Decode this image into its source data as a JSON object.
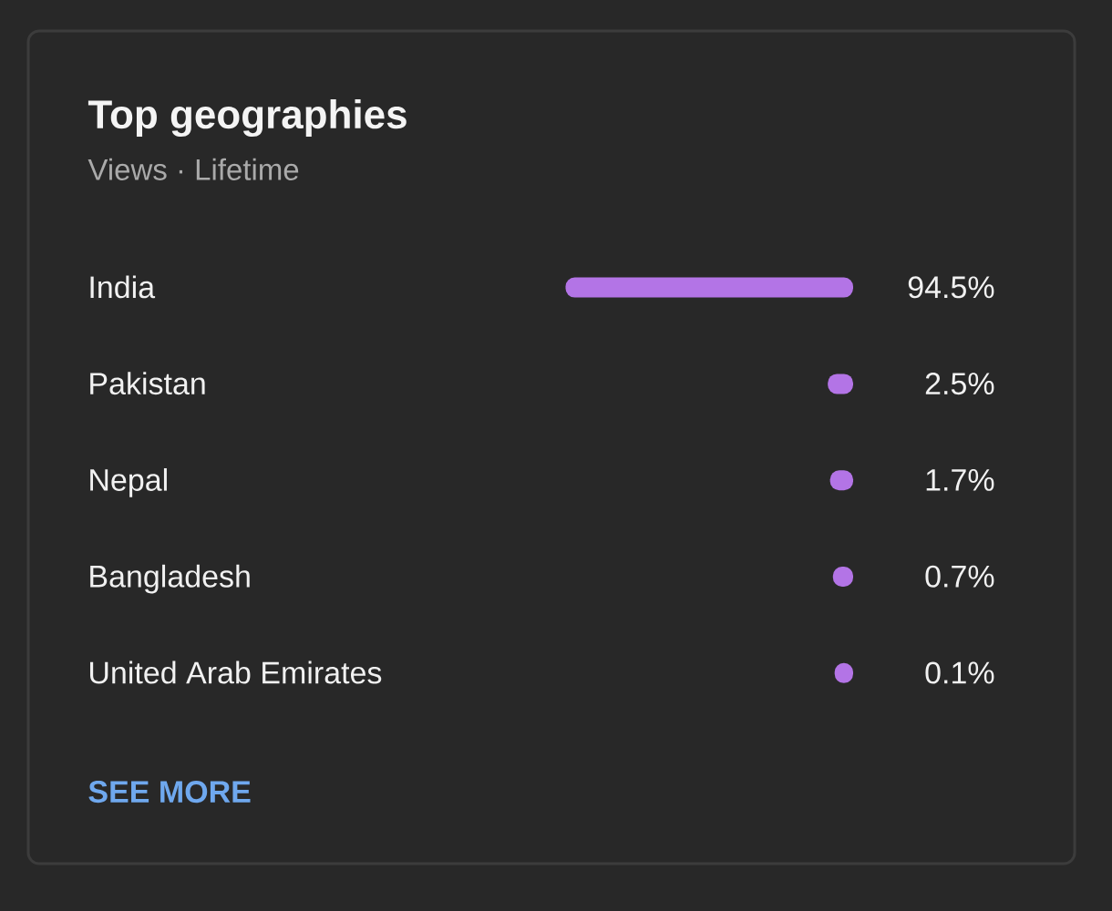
{
  "chart_data": {
    "type": "bar",
    "orientation": "horizontal",
    "title": "Top geographies",
    "subtitle": "Views · Lifetime",
    "categories": [
      "India",
      "Pakistan",
      "Nepal",
      "Bangladesh",
      "United Arab Emirates"
    ],
    "values": [
      94.5,
      2.5,
      1.7,
      0.7,
      0.1
    ],
    "value_labels": [
      "94.5%",
      "2.5%",
      "1.7%",
      "0.7%",
      "0.1%"
    ],
    "color": "#b374e6",
    "annotations": [
      "SEE MORE"
    ]
  }
}
